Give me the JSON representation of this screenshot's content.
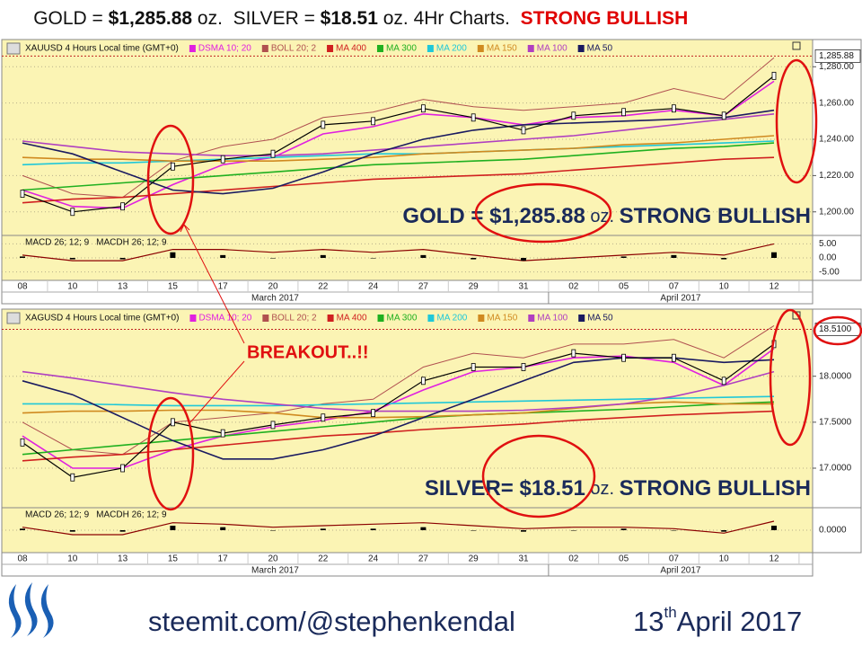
{
  "header": {
    "parts": [
      "GOLD = ",
      "$1,285.88",
      " oz.  SILVER = ",
      "$18.51",
      " oz. 4Hr Charts.  ",
      "STRONG BULLISH"
    ]
  },
  "chart_data": [
    {
      "type": "line",
      "title": "XAUUSD 4 Hours Local time (GMT+0)",
      "categories": [
        "08",
        "10",
        "13",
        "15",
        "17",
        "20",
        "22",
        "24",
        "27",
        "29",
        "31",
        "02",
        "05",
        "07",
        "10",
        "12"
      ],
      "months": [
        "March 2017",
        "April 2017"
      ],
      "values": [
        1210,
        1200,
        1203,
        1225,
        1229,
        1232,
        1248,
        1250,
        1257,
        1252,
        1245,
        1253,
        1255,
        1257,
        1253,
        1275
      ],
      "color": "#000000",
      "series": [
        {
          "name": "DSMA 10; 20",
          "color": "#e020e0",
          "values": [
            1212,
            1203,
            1202,
            1215,
            1226,
            1230,
            1243,
            1247,
            1254,
            1252,
            1248,
            1252,
            1253,
            1256,
            1253,
            1272
          ]
        },
        {
          "name": "BOLL 20; 2",
          "color": "#b05050",
          "values": [
            1220,
            1210,
            1208,
            1228,
            1236,
            1240,
            1252,
            1255,
            1262,
            1258,
            1256,
            1258,
            1260,
            1268,
            1262,
            1285
          ]
        },
        {
          "name": "MA 400",
          "color": "#d02020",
          "values": [
            1205,
            1207,
            1208,
            1210,
            1212,
            1214,
            1216,
            1218,
            1219,
            1220,
            1221,
            1223,
            1225,
            1227,
            1229,
            1230
          ]
        },
        {
          "name": "MA 300",
          "color": "#20b020",
          "values": [
            1212,
            1214,
            1216,
            1218,
            1220,
            1222,
            1224,
            1226,
            1227,
            1228,
            1229,
            1231,
            1233,
            1235,
            1236,
            1238
          ]
        },
        {
          "name": "MA 200",
          "color": "#20c8d8",
          "values": [
            1226,
            1227,
            1227,
            1228,
            1229,
            1230,
            1231,
            1232,
            1232,
            1233,
            1234,
            1235,
            1236,
            1237,
            1238,
            1239
          ]
        },
        {
          "name": "MA 150",
          "color": "#d08a20",
          "values": [
            1230,
            1229,
            1229,
            1228,
            1228,
            1228,
            1229,
            1230,
            1232,
            1233,
            1234,
            1235,
            1237,
            1238,
            1240,
            1242
          ]
        },
        {
          "name": "MA 100",
          "color": "#b040c0",
          "values": [
            1239,
            1236,
            1233,
            1232,
            1231,
            1231,
            1232,
            1234,
            1236,
            1238,
            1240,
            1242,
            1245,
            1248,
            1251,
            1254
          ]
        },
        {
          "name": "MA 50",
          "color": "#1a1a60",
          "values": [
            1238,
            1232,
            1222,
            1212,
            1210,
            1213,
            1222,
            1232,
            1240,
            1245,
            1248,
            1249,
            1250,
            1251,
            1252,
            1256
          ]
        }
      ],
      "ylim": [
        1187,
        1295
      ],
      "yticks": [
        {
          "value": 1200,
          "label": "1,200.00"
        },
        {
          "value": 1220,
          "label": "1,220.00"
        },
        {
          "value": 1240,
          "label": "1,240.00"
        },
        {
          "value": 1260,
          "label": "1,260.00"
        },
        {
          "value": 1280,
          "label": "1,280.00"
        }
      ],
      "last_price": {
        "value": 1285.88,
        "label": "1,285.88"
      },
      "annotation": [
        "GOLD = ",
        "$1,285.88",
        " oz. ",
        "STRONG BULLISH"
      ],
      "indicator": {
        "type": "macd",
        "ylim": [
          -8,
          8
        ],
        "yticks": [
          {
            "value": 5,
            "label": "5.00"
          },
          {
            "value": 0,
            "label": "0.00"
          },
          {
            "value": -5,
            "label": "-5.00"
          }
        ],
        "series": [
          {
            "name": "MACD 26; 12; 9",
            "color": "#8b0000",
            "style": "line",
            "values": [
              1,
              -1,
              -1,
              3,
              3,
              2,
              3,
              2,
              3,
              1,
              -1,
              0,
              1,
              2,
              1,
              5
            ]
          },
          {
            "name": "MACDH 26; 12; 9",
            "color": "#000000",
            "style": "bar",
            "values": [
              0.5,
              -0.5,
              -0.5,
              2,
              1,
              0,
              1,
              0,
              1,
              -0.5,
              -1,
              0,
              0.5,
              1,
              -0.5,
              2
            ]
          }
        ]
      }
    },
    {
      "type": "line",
      "title": "XAGUSD 4 Hours Local time (GMT+0)",
      "categories": [
        "08",
        "10",
        "13",
        "15",
        "17",
        "20",
        "22",
        "24",
        "27",
        "29",
        "31",
        "02",
        "05",
        "07",
        "10",
        "12"
      ],
      "months": [
        "March 2017",
        "April 2017"
      ],
      "values": [
        17.28,
        16.9,
        17.0,
        17.5,
        17.38,
        17.47,
        17.55,
        17.6,
        17.95,
        18.1,
        18.1,
        18.25,
        18.2,
        18.2,
        17.95,
        18.35
      ],
      "color": "#000000",
      "series": [
        {
          "name": "DSMA 10; 20",
          "color": "#e020e0",
          "values": [
            17.35,
            17.0,
            17.0,
            17.2,
            17.35,
            17.45,
            17.52,
            17.62,
            17.85,
            18.05,
            18.1,
            18.2,
            18.22,
            18.15,
            17.9,
            18.3
          ]
        },
        {
          "name": "BOLL 20; 2",
          "color": "#b05050",
          "values": [
            17.5,
            17.2,
            17.15,
            17.5,
            17.55,
            17.6,
            17.7,
            17.75,
            18.1,
            18.25,
            18.2,
            18.35,
            18.35,
            18.4,
            18.2,
            18.55
          ]
        },
        {
          "name": "MA 400",
          "color": "#d02020",
          "values": [
            17.08,
            17.12,
            17.15,
            17.2,
            17.25,
            17.3,
            17.35,
            17.38,
            17.42,
            17.45,
            17.48,
            17.52,
            17.55,
            17.58,
            17.6,
            17.62
          ]
        },
        {
          "name": "MA 300",
          "color": "#20b020",
          "values": [
            17.15,
            17.2,
            17.25,
            17.3,
            17.35,
            17.4,
            17.45,
            17.5,
            17.55,
            17.58,
            17.6,
            17.62,
            17.64,
            17.67,
            17.7,
            17.72
          ]
        },
        {
          "name": "MA 200",
          "color": "#20c8d8",
          "values": [
            17.7,
            17.7,
            17.69,
            17.68,
            17.68,
            17.68,
            17.69,
            17.7,
            17.71,
            17.72,
            17.73,
            17.74,
            17.75,
            17.76,
            17.77,
            17.78
          ]
        },
        {
          "name": "MA 150",
          "color": "#d08a20",
          "values": [
            17.6,
            17.62,
            17.62,
            17.63,
            17.63,
            17.6,
            17.55,
            17.55,
            17.56,
            17.58,
            17.6,
            17.65,
            17.7,
            17.72,
            17.7,
            17.7
          ]
        },
        {
          "name": "MA 100",
          "color": "#b040c0",
          "values": [
            18.05,
            17.98,
            17.9,
            17.82,
            17.75,
            17.7,
            17.65,
            17.62,
            17.62,
            17.62,
            17.63,
            17.66,
            17.7,
            17.78,
            17.9,
            18.05
          ]
        },
        {
          "name": "MA 50",
          "color": "#1a1a60",
          "values": [
            17.95,
            17.8,
            17.55,
            17.3,
            17.1,
            17.1,
            17.2,
            17.35,
            17.55,
            17.75,
            17.95,
            18.15,
            18.2,
            18.2,
            18.15,
            18.18
          ]
        }
      ],
      "ylim": [
        16.57,
        18.73
      ],
      "yticks": [
        {
          "value": 17,
          "label": "17.0000"
        },
        {
          "value": 17.5,
          "label": "17.5000"
        },
        {
          "value": 18,
          "label": "18.0000"
        }
      ],
      "last_price": {
        "value": 18.51,
        "label": "18.5100"
      },
      "annotation": [
        "SILVER= ",
        "$18.51",
        " oz. ",
        "STRONG BULLISH"
      ],
      "indicator": {
        "type": "macd",
        "ylim": [
          -0.15,
          0.15
        ],
        "yticks": [
          {
            "value": 0,
            "label": "0.0000"
          }
        ],
        "series": [
          {
            "name": "MACD 26; 12; 9",
            "color": "#8b0000",
            "style": "line",
            "values": [
              0.02,
              -0.03,
              -0.03,
              0.05,
              0.04,
              0.02,
              0.03,
              0.04,
              0.05,
              0.03,
              0.01,
              0.02,
              0.02,
              0.01,
              -0.02,
              0.06
            ]
          },
          {
            "name": "MACDH 26; 12; 9",
            "color": "#000000",
            "style": "bar",
            "values": [
              0.01,
              -0.01,
              -0.01,
              0.03,
              0.02,
              0.0,
              0.01,
              0.01,
              0.02,
              0.0,
              -0.01,
              0.0,
              0.01,
              0.0,
              -0.01,
              0.03
            ]
          }
        ]
      }
    }
  ],
  "callout": "BREAKOUT..!!",
  "footer": {
    "site": "steemit.com/@stephenkendal",
    "day": "13",
    "suffix": "th",
    "month_year": "April 2017"
  }
}
